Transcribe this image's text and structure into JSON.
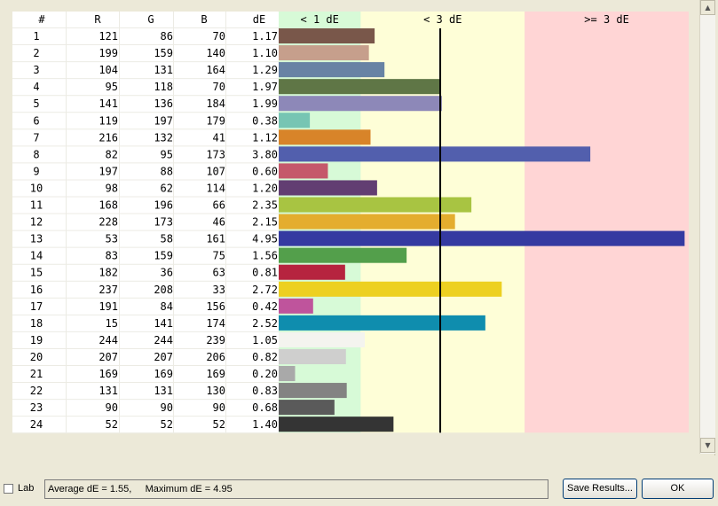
{
  "table": {
    "headers": [
      "#",
      "R",
      "G",
      "B",
      "dE"
    ],
    "bands": [
      {
        "label": "< 1 dE",
        "start": 0,
        "end": 1,
        "color": "#d7fad7"
      },
      {
        "label": "< 3 dE",
        "start": 1,
        "end": 3,
        "color": "#fefed7"
      },
      {
        "label": ">= 3 dE",
        "start": 3,
        "end": 5,
        "color": "#ffd5d5"
      }
    ],
    "threshold_line": 1.97,
    "rows": [
      {
        "id": "1",
        "r": "121",
        "g": "86",
        "b": "70",
        "de": "1.17",
        "color": "#79574a"
      },
      {
        "id": "2",
        "r": "199",
        "g": "159",
        "b": "140",
        "de": "1.10",
        "color": "#c69f8c"
      },
      {
        "id": "3",
        "r": "104",
        "g": "131",
        "b": "164",
        "de": "1.29",
        "color": "#6883a4"
      },
      {
        "id": "4",
        "r": "95",
        "g": "118",
        "b": "70",
        "de": "1.97",
        "color": "#5f7646"
      },
      {
        "id": "5",
        "r": "141",
        "g": "136",
        "b": "184",
        "de": "1.99",
        "color": "#8d88b8"
      },
      {
        "id": "6",
        "r": "119",
        "g": "197",
        "b": "179",
        "de": "0.38",
        "color": "#77c5b3"
      },
      {
        "id": "7",
        "r": "216",
        "g": "132",
        "b": "41",
        "de": "1.12",
        "color": "#d88429"
      },
      {
        "id": "8",
        "r": "82",
        "g": "95",
        "b": "173",
        "de": "3.80",
        "color": "#525fad"
      },
      {
        "id": "9",
        "r": "197",
        "g": "88",
        "b": "107",
        "de": "0.60",
        "color": "#c5586b"
      },
      {
        "id": "10",
        "r": "98",
        "g": "62",
        "b": "114",
        "de": "1.20",
        "color": "#623e72"
      },
      {
        "id": "11",
        "r": "168",
        "g": "196",
        "b": "66",
        "de": "2.35",
        "color": "#a8c442"
      },
      {
        "id": "12",
        "r": "228",
        "g": "173",
        "b": "46",
        "de": "2.15",
        "color": "#e4ad2e"
      },
      {
        "id": "13",
        "r": "53",
        "g": "58",
        "b": "161",
        "de": "4.95",
        "color": "#353aa1"
      },
      {
        "id": "14",
        "r": "83",
        "g": "159",
        "b": "75",
        "de": "1.56",
        "color": "#539f4b"
      },
      {
        "id": "15",
        "r": "182",
        "g": "36",
        "b": "63",
        "de": "0.81",
        "color": "#b6243f"
      },
      {
        "id": "16",
        "r": "237",
        "g": "208",
        "b": "33",
        "de": "2.72",
        "color": "#edd021"
      },
      {
        "id": "17",
        "r": "191",
        "g": "84",
        "b": "156",
        "de": "0.42",
        "color": "#bf549c"
      },
      {
        "id": "18",
        "r": "15",
        "g": "141",
        "b": "174",
        "de": "2.52",
        "color": "#0f8dae"
      },
      {
        "id": "19",
        "r": "244",
        "g": "244",
        "b": "239",
        "de": "1.05",
        "color": "#f4f4ef"
      },
      {
        "id": "20",
        "r": "207",
        "g": "207",
        "b": "206",
        "de": "0.82",
        "color": "#cfcfce"
      },
      {
        "id": "21",
        "r": "169",
        "g": "169",
        "b": "169",
        "de": "0.20",
        "color": "#a9a9a9"
      },
      {
        "id": "22",
        "r": "131",
        "g": "131",
        "b": "130",
        "de": "0.83",
        "color": "#838382"
      },
      {
        "id": "23",
        "r": "90",
        "g": "90",
        "b": "90",
        "de": "0.68",
        "color": "#5a5a5a"
      },
      {
        "id": "24",
        "r": "52",
        "g": "52",
        "b": "52",
        "de": "1.40",
        "color": "#343434"
      }
    ]
  },
  "bottom": {
    "lab_label": "Lab",
    "status_text": "Average dE = 1.55,     Maximum dE = 4.95",
    "save_button": "Save Results...",
    "ok_button": "OK"
  },
  "scrollbar": {
    "up_icon": "arrow-up-icon",
    "down_icon": "arrow-down-icon"
  }
}
